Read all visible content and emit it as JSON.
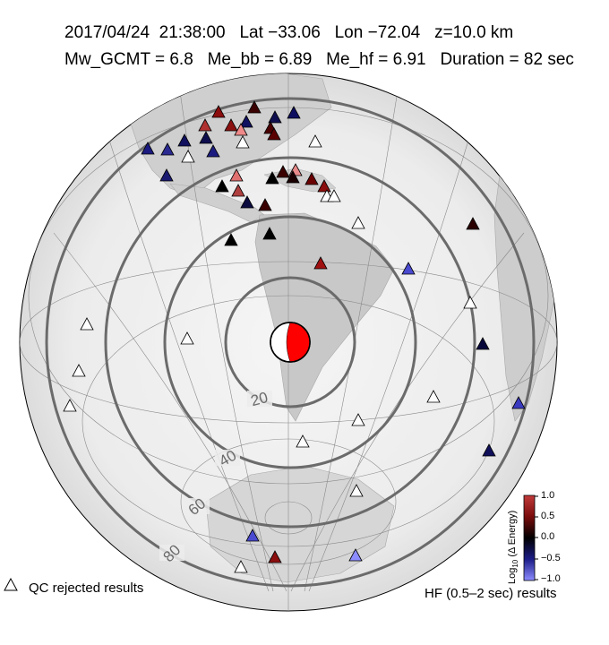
{
  "header": {
    "date": "2017/04/24",
    "time": "21:38:00",
    "lat_label": "Lat",
    "lat": "−33.06",
    "lon_label": "Lon",
    "lon": "−72.04",
    "depth": "z=10.0 km",
    "line1": "2017/04/24  21:38:00   Lat −33.06   Lon −72.04   z=10.0 km",
    "line2": "Mw_GCMT = 6.8   Me_bb = 6.89   Me_hf = 6.91   Duration = 82 sec"
  },
  "magnitudes": {
    "mw_gcmt": 6.8,
    "me_bb": 6.89,
    "me_hf": 6.91,
    "duration_sec": 82
  },
  "distance_rings": {
    "labels": [
      "20",
      "40",
      "60",
      "80"
    ],
    "values_deg": [
      20,
      40,
      60,
      80
    ]
  },
  "colorbar": {
    "label": "Log10 (Δ Energy)",
    "label_base": "Log",
    "label_sub": "10",
    "label_rest": " (Δ Energy)",
    "ticks": [
      "1.0",
      "0.5",
      "0.0",
      "−0.5",
      "−1.0"
    ],
    "range": [
      -1.0,
      1.0
    ],
    "colors": {
      "high": "#b00000",
      "mid": "#000000",
      "low": "#6a6aff"
    }
  },
  "legend": {
    "qc_rejected": "QC rejected results",
    "hf_results": "HF (0.5–2 sec) results"
  },
  "colors": {
    "ring": "#6b6b6b",
    "beachball_fill": "#ff0000",
    "ocean": "#f2f2f2",
    "land": "#c9c9c9"
  }
}
